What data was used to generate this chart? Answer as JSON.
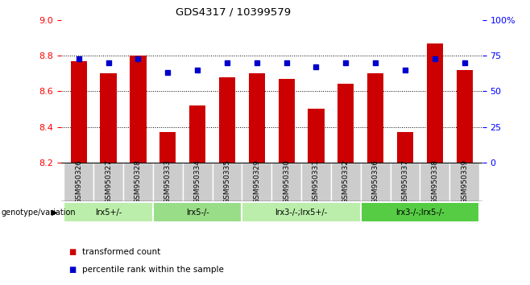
{
  "title": "GDS4317 / 10399579",
  "samples": [
    "GSM950326",
    "GSM950327",
    "GSM950328",
    "GSM950333",
    "GSM950334",
    "GSM950335",
    "GSM950329",
    "GSM950330",
    "GSM950331",
    "GSM950332",
    "GSM950336",
    "GSM950337",
    "GSM950338",
    "GSM950339"
  ],
  "bar_values": [
    8.77,
    8.7,
    8.8,
    8.37,
    8.52,
    8.68,
    8.7,
    8.67,
    8.5,
    8.64,
    8.7,
    8.37,
    8.87,
    8.72
  ],
  "percentile_values": [
    73,
    70,
    73,
    63,
    65,
    70,
    70,
    70,
    67,
    70,
    70,
    65,
    73,
    70
  ],
  "y_min": 8.2,
  "y_max": 9.0,
  "y_ticks": [
    8.2,
    8.4,
    8.6,
    8.8,
    9.0
  ],
  "y2_ticks": [
    0,
    25,
    50,
    75,
    100
  ],
  "bar_color": "#cc0000",
  "dot_color": "#0000cc",
  "groups": [
    {
      "label": "lrx5+/-",
      "start": 0,
      "end": 3,
      "color": "#bbeeaa"
    },
    {
      "label": "lrx5-/-",
      "start": 3,
      "end": 6,
      "color": "#99dd88"
    },
    {
      "label": "lrx3-/-;lrx5+/-",
      "start": 6,
      "end": 10,
      "color": "#bbeeaa"
    },
    {
      "label": "lrx3-/-;lrx5-/-",
      "start": 10,
      "end": 14,
      "color": "#55cc44"
    }
  ],
  "genotype_label": "genotype/variation",
  "bar_color_legend": "transformed count",
  "dot_color_legend": "percentile rank within the sample",
  "background_color": "#ffffff",
  "bar_width": 0.55
}
